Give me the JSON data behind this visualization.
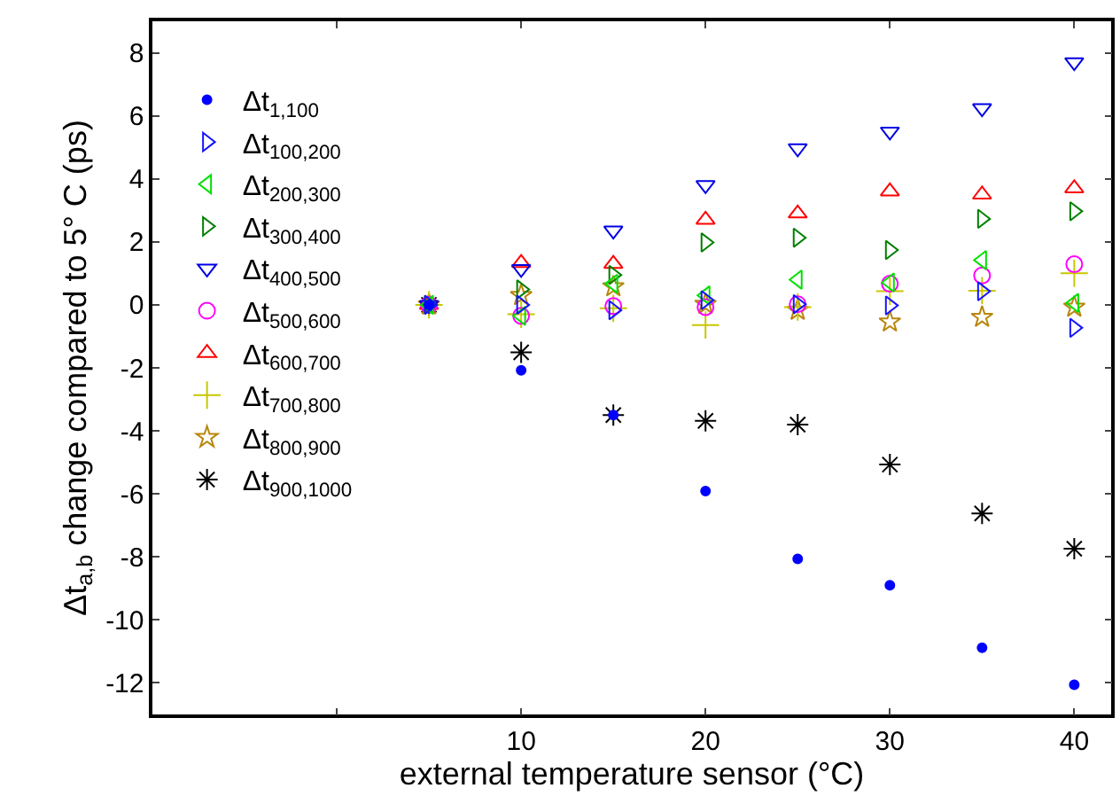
{
  "chart_data": {
    "type": "scatter",
    "xlabel": "external temperature sensor (°C)",
    "ylabel": "Δt$_{a,b}$ change compared to 5° C (ps)",
    "x": [
      5,
      10,
      15,
      20,
      25,
      30,
      35,
      40
    ],
    "xlim": [
      -10,
      42
    ],
    "xticks": [
      {
        "value": 0,
        "label": null
      },
      10,
      20,
      30,
      40
    ],
    "ylim": [
      -13,
      9
    ],
    "yticks": [
      -12,
      -10,
      -8,
      -6,
      -4,
      -2,
      0,
      2,
      4,
      6,
      8
    ],
    "grid": false,
    "legend": "top left",
    "series": [
      {
        "name": "Δt$_{1,100}$",
        "color": "#0000ff",
        "marker": "point",
        "values": [
          0,
          -2.08,
          -3.5,
          -5.91,
          -8.06,
          -8.9,
          -10.88,
          -12.06
        ]
      },
      {
        "name": "Δt$_{100,200}$",
        "color": "#1414ff",
        "marker": "triangle-right",
        "values": [
          0,
          0,
          -0.17,
          0.15,
          0.02,
          -0.02,
          0.43,
          -0.73
        ]
      },
      {
        "name": "Δt$_{200,300}$",
        "color": "#00e000",
        "marker": "triangle-left",
        "values": [
          0,
          -0.35,
          0.67,
          0.3,
          0.8,
          0.71,
          1.42,
          0.06
        ]
      },
      {
        "name": "Δt$_{300,400}$",
        "color": "#008000",
        "marker": "triangle-right",
        "values": [
          0,
          0.49,
          0.95,
          1.98,
          2.13,
          1.74,
          2.73,
          2.97
        ]
      },
      {
        "name": "Δt$_{400,500}$",
        "color": "#0000e6",
        "marker": "triangle-down",
        "values": [
          0,
          1.14,
          2.36,
          3.8,
          4.97,
          5.5,
          6.24,
          7.7
        ]
      },
      {
        "name": "Δt$_{500,600}$",
        "color": "#ff00ff",
        "marker": "circle",
        "values": [
          0,
          -0.35,
          -0.04,
          -0.07,
          0.02,
          0.67,
          0.93,
          1.29
        ]
      },
      {
        "name": "Δt$_{600,700}$",
        "color": "#ff0000",
        "marker": "triangle-up",
        "values": [
          0,
          1.33,
          1.3,
          2.7,
          2.9,
          3.6,
          3.5,
          3.7
        ]
      },
      {
        "name": "Δt$_{700,800}$",
        "color": "#c8c800",
        "marker": "plus",
        "values": [
          0,
          -0.3,
          -0.11,
          -0.64,
          -0.07,
          0.43,
          0.45,
          1.0
        ]
      },
      {
        "name": "Δt$_{800,900}$",
        "color": "#b8860b",
        "marker": "star",
        "values": [
          0,
          0.3,
          0.58,
          0.02,
          -0.17,
          -0.54,
          -0.39,
          -0.07
        ]
      },
      {
        "name": "Δt$_{900,1000}$",
        "color": "#000000",
        "marker": "cross",
        "values": [
          0,
          -1.51,
          -3.5,
          -3.68,
          -3.8,
          -5.07,
          -6.62,
          -7.74
        ]
      }
    ]
  }
}
